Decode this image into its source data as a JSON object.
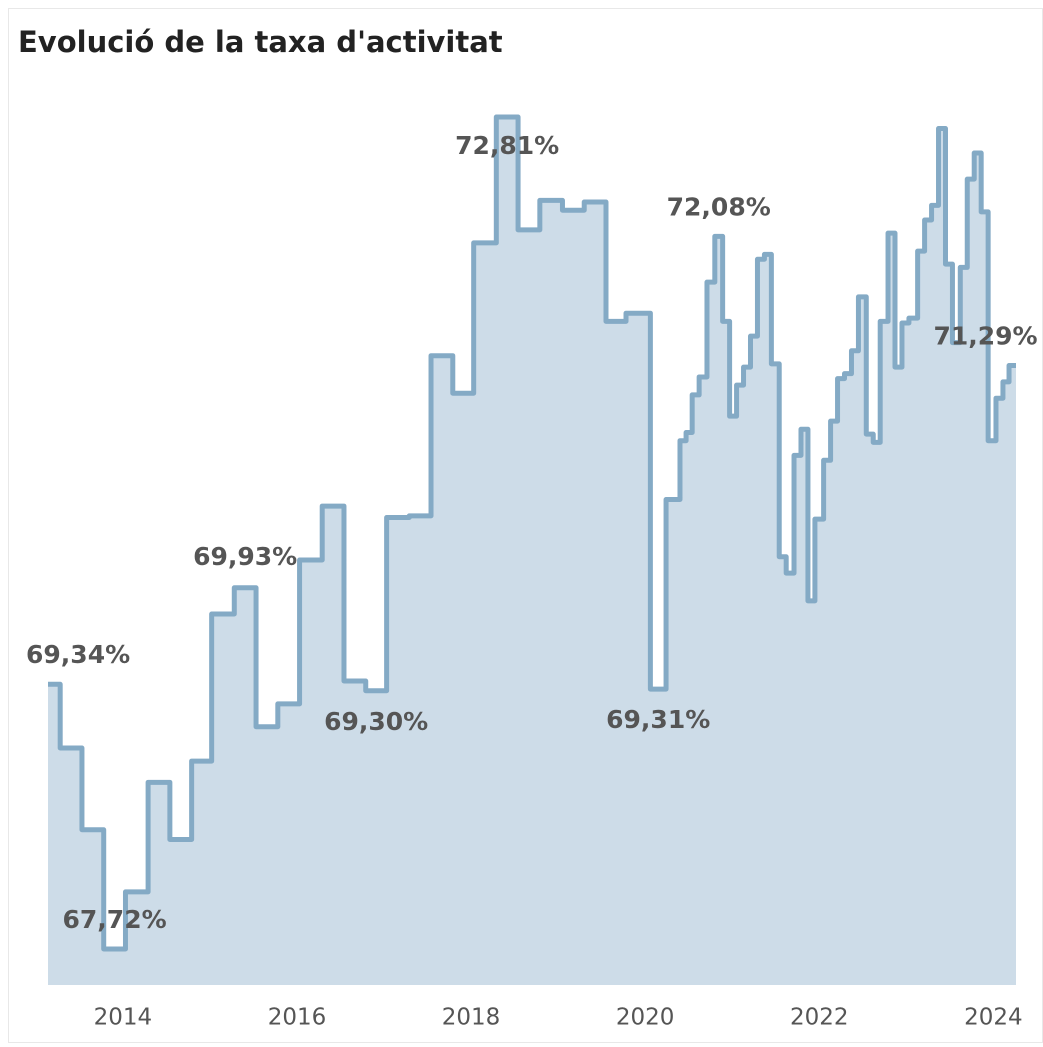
{
  "chart_data": {
    "type": "step-area",
    "title": "Evolució de la taxa d'activitat",
    "x": [
      2013.14,
      2013.28,
      2013.53,
      2013.78,
      2014.03,
      2014.29,
      2014.54,
      2014.79,
      2015.02,
      2015.28,
      2015.53,
      2015.78,
      2016.03,
      2016.29,
      2016.54,
      2016.79,
      2017.03,
      2017.29,
      2017.54,
      2017.79,
      2018.03,
      2018.29,
      2018.54,
      2018.79,
      2019.05,
      2019.3,
      2019.55,
      2019.78,
      2020.06,
      2020.24,
      2020.4,
      2020.47,
      2020.54,
      2020.62,
      2020.71,
      2020.8,
      2020.89,
      2020.97,
      2021.05,
      2021.13,
      2021.21,
      2021.29,
      2021.37,
      2021.45,
      2021.54,
      2021.62,
      2021.71,
      2021.79,
      2021.87,
      2021.95,
      2022.05,
      2022.13,
      2022.21,
      2022.29,
      2022.37,
      2022.45,
      2022.54,
      2022.62,
      2022.7,
      2022.79,
      2022.87,
      2022.95,
      2023.03,
      2023.13,
      2023.21,
      2023.29,
      2023.37,
      2023.45,
      2023.53,
      2023.62,
      2023.7,
      2023.78,
      2023.86,
      2023.94,
      2024.03,
      2024.11,
      2024.18
    ],
    "values": [
      69.34,
      68.95,
      68.45,
      67.72,
      68.07,
      68.74,
      68.39,
      68.87,
      69.77,
      69.93,
      69.08,
      69.22,
      70.1,
      70.43,
      69.36,
      69.3,
      70.36,
      70.37,
      71.35,
      71.12,
      72.04,
      72.81,
      72.12,
      72.3,
      72.24,
      72.29,
      71.56,
      71.61,
      69.31,
      70.47,
      70.83,
      70.88,
      71.11,
      71.22,
      71.8,
      72.08,
      71.56,
      70.98,
      71.17,
      71.28,
      71.47,
      71.94,
      71.97,
      71.3,
      70.12,
      70.02,
      70.74,
      70.9,
      69.85,
      70.35,
      70.71,
      70.95,
      71.21,
      71.24,
      71.38,
      71.71,
      70.87,
      70.82,
      71.56,
      72.1,
      71.28,
      71.55,
      71.58,
      71.99,
      72.18,
      72.27,
      72.74,
      71.91,
      71.43,
      71.89,
      72.43,
      72.59,
      72.23,
      70.83,
      71.09,
      71.19,
      71.29
    ],
    "value_labels": [
      "69,34%",
      null,
      null,
      "67,72%",
      null,
      null,
      null,
      null,
      null,
      "69,93%",
      null,
      null,
      null,
      null,
      null,
      "69,30%",
      null,
      null,
      null,
      null,
      null,
      "72,81%",
      null,
      null,
      null,
      null,
      null,
      null,
      "69,31%",
      null,
      null,
      null,
      null,
      null,
      null,
      "72,08%",
      null,
      null,
      null,
      null,
      null,
      null,
      null,
      null,
      null,
      null,
      null,
      null,
      null,
      null,
      null,
      null,
      null,
      null,
      null,
      null,
      null,
      null,
      null,
      null,
      null,
      null,
      null,
      null,
      null,
      null,
      null,
      null,
      null,
      null,
      null,
      null,
      null,
      null,
      null,
      null,
      "71,29%"
    ],
    "line_color": "#84aac5",
    "fill_color": "#cddce8",
    "xlim": [
      2013.14,
      2024.26
    ],
    "xticks": [
      2014,
      2016,
      2018,
      2020,
      2022,
      2024
    ],
    "ylim": [
      67.5,
      73
    ]
  }
}
